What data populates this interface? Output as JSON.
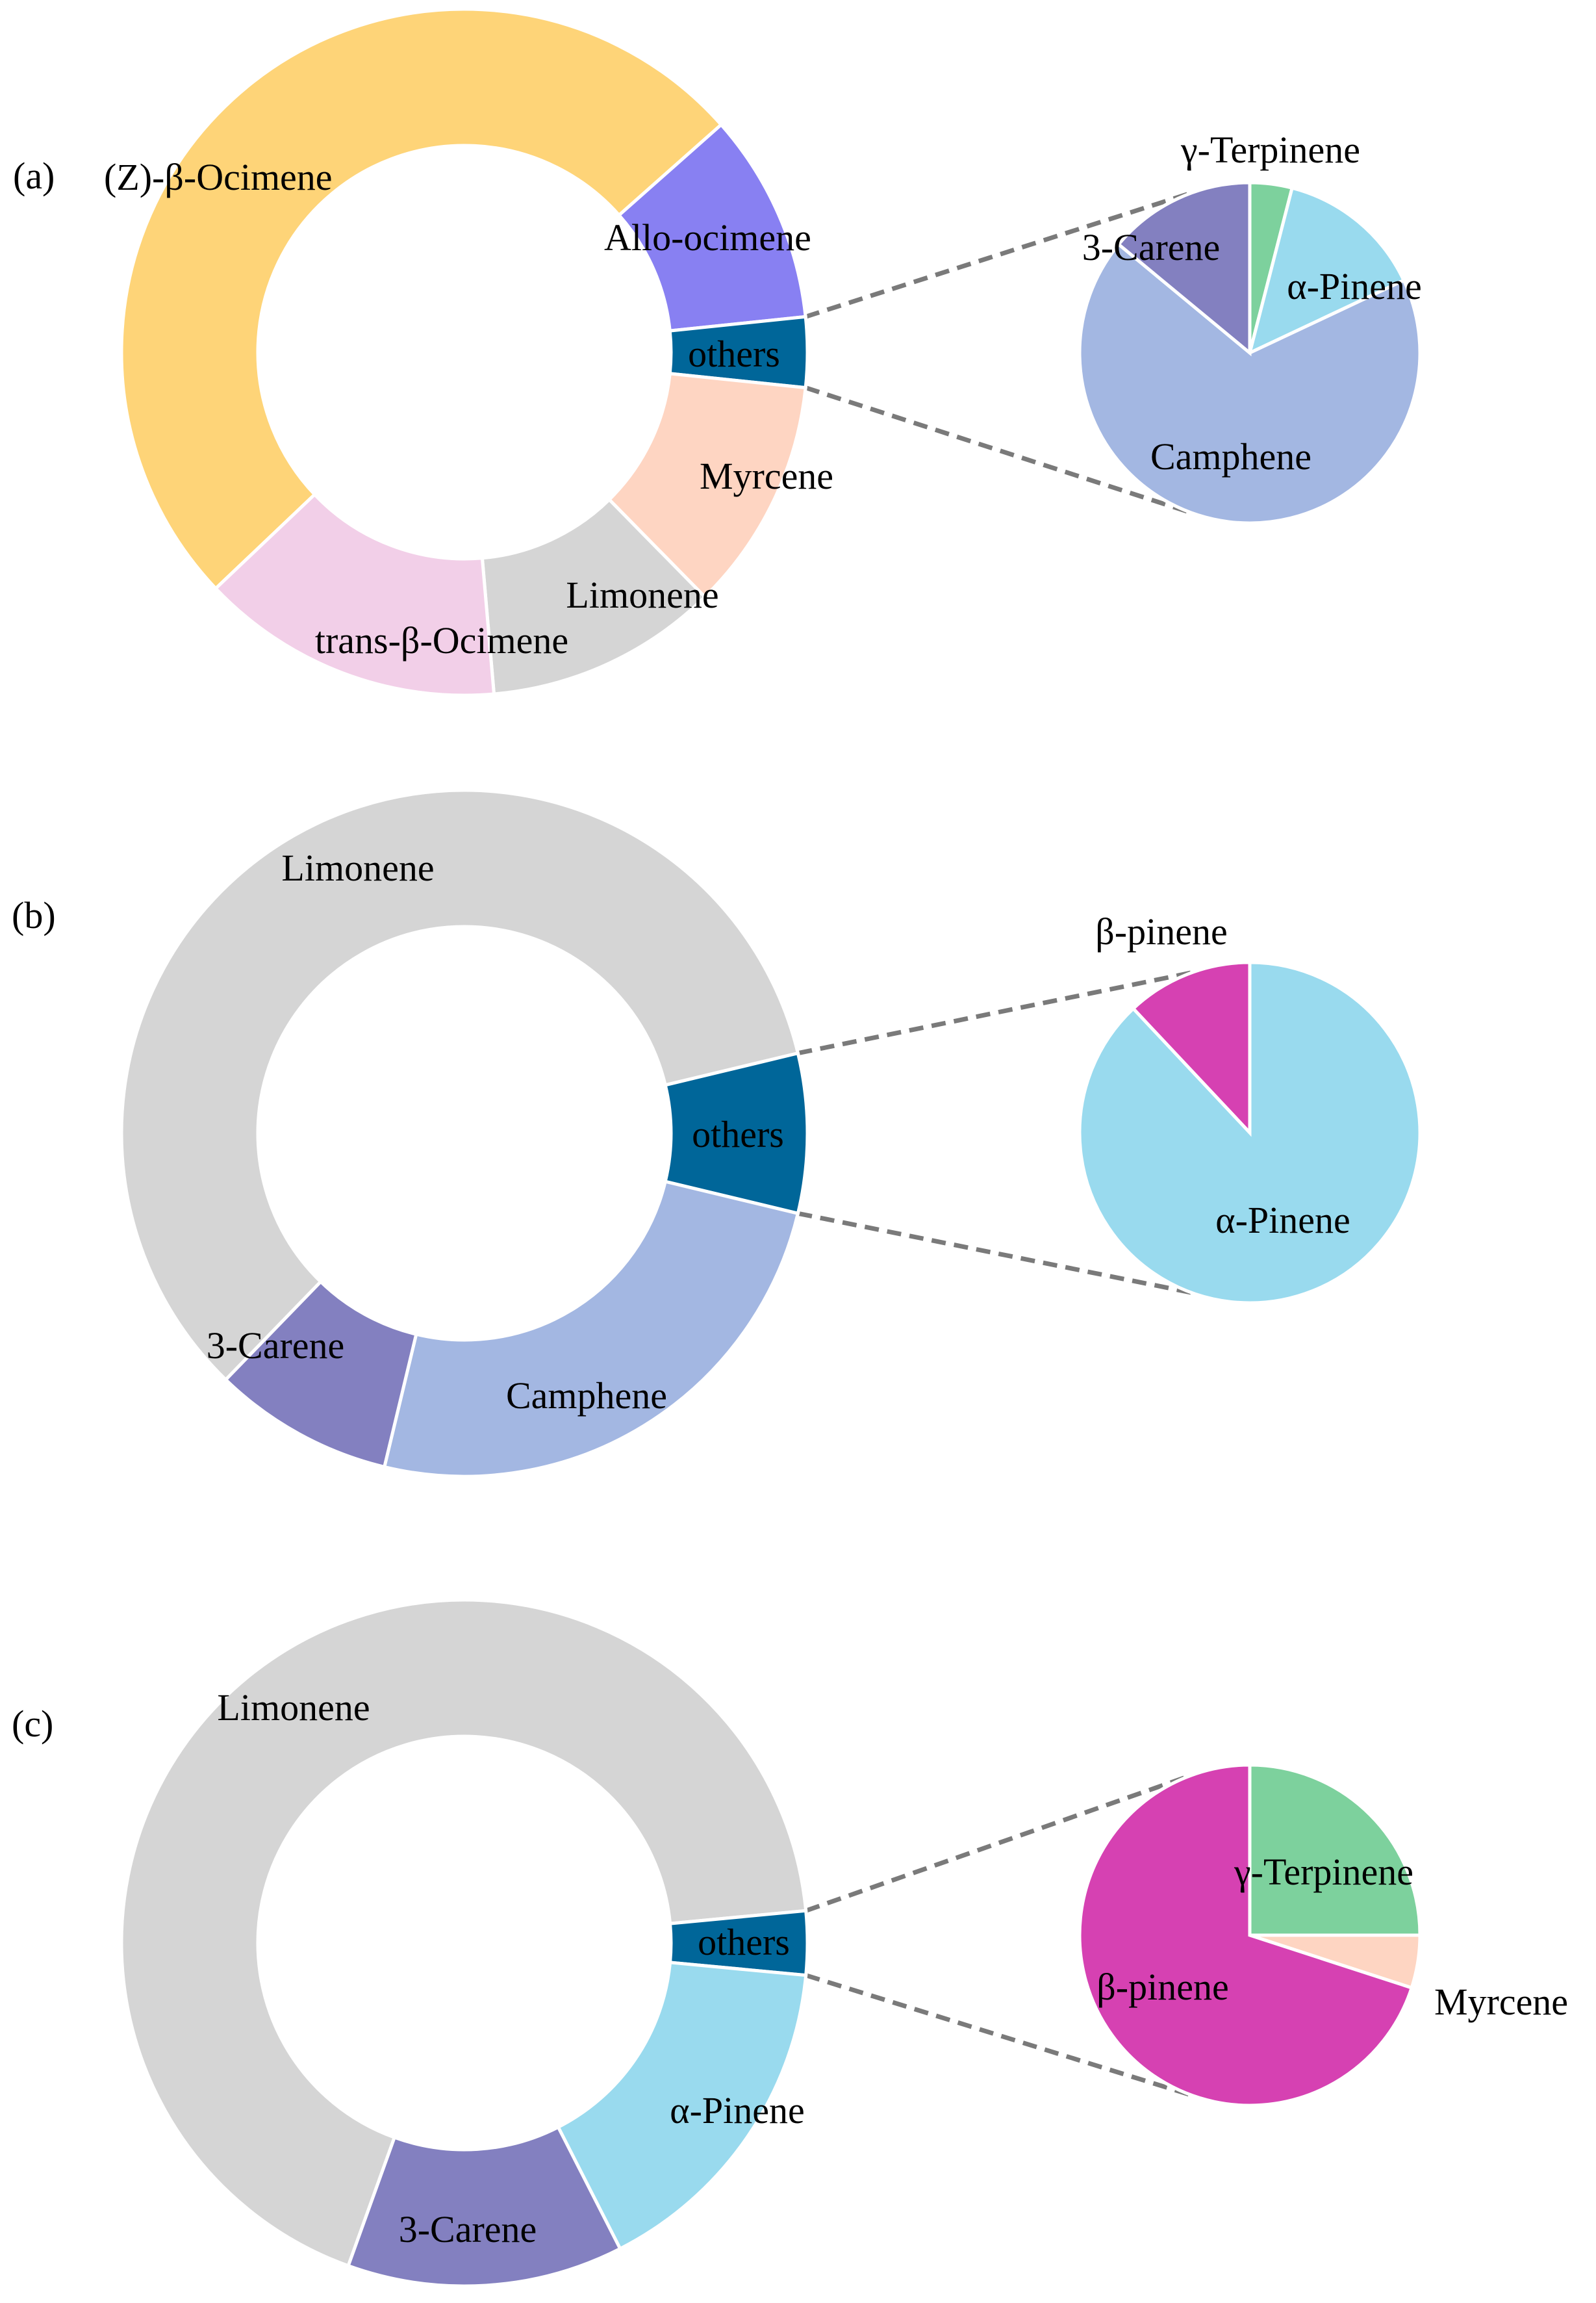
{
  "chart_data": [
    {
      "type": "pie",
      "variant": "bar-of-pie (donut with exploded sub-pie)",
      "panel_label": "(a)",
      "ring": {
        "slices": [
          {
            "label": "(Z)-β-Ocimene",
            "value": 46.0,
            "color": "#FED478"
          },
          {
            "label": "Allo-ocimene",
            "value": 9.0,
            "color": "#8880F2"
          },
          {
            "label": "others",
            "value": 3.0,
            "color": "#006699"
          },
          {
            "label": "Myrcene",
            "value": 10.0,
            "color": "#FED5C2"
          },
          {
            "label": "Limonene",
            "value": 10.0,
            "color": "#D5D5D5"
          },
          {
            "label": "trans-β-Ocimene",
            "value": 13.0,
            "color": "#F2CFE8"
          }
        ]
      },
      "others_breakdown": {
        "slices": [
          {
            "label": "γ-Terpinene",
            "value": 4.0,
            "color": "#7DD19D"
          },
          {
            "label": "α-Pinene",
            "value": 14.0,
            "color": "#99DAEE"
          },
          {
            "label": "Camphene",
            "value": 68.0,
            "color": "#A3B7E2"
          },
          {
            "label": "3-Carene",
            "value": 14.0,
            "color": "#8380C0"
          }
        ]
      }
    },
    {
      "type": "pie",
      "variant": "bar-of-pie (donut with exploded sub-pie)",
      "panel_label": "(b)",
      "ring": {
        "slices": [
          {
            "label": "Limonene",
            "value": 59.0,
            "color": "#D5D5D5"
          },
          {
            "label": "others",
            "value": 7.5,
            "color": "#006699"
          },
          {
            "label": "Camphene",
            "value": 25.0,
            "color": "#A3B7E2"
          },
          {
            "label": "3-Carene",
            "value": 8.5,
            "color": "#8380C0"
          }
        ]
      },
      "others_breakdown": {
        "slices": [
          {
            "label": "α-Pinene",
            "value": 88.0,
            "color": "#99DAEE"
          },
          {
            "label": "β-pinene",
            "value": 12.0,
            "color": "#D641B2"
          }
        ]
      }
    },
    {
      "type": "pie",
      "variant": "bar-of-pie (donut with exploded sub-pie)",
      "panel_label": "(c)",
      "ring": {
        "slices": [
          {
            "label": "Limonene",
            "value": 68.0,
            "color": "#D5D5D5"
          },
          {
            "label": "others",
            "value": 3.0,
            "color": "#006699"
          },
          {
            "label": "α-Pinene",
            "value": 16.0,
            "color": "#99DAEE"
          },
          {
            "label": "3-Carene",
            "value": 13.0,
            "color": "#8380C0"
          }
        ]
      },
      "others_breakdown": {
        "slices": [
          {
            "label": "γ-Terpinene",
            "value": 25.0,
            "color": "#7DD19D"
          },
          {
            "label": "Myrcene",
            "value": 5.0,
            "color": "#FED5C2"
          },
          {
            "label": "β-pinene",
            "value": 70.0,
            "color": "#D641B2"
          }
        ]
      }
    }
  ]
}
